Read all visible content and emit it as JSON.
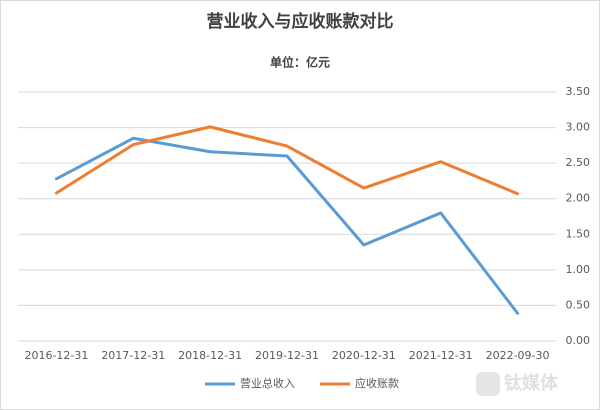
{
  "chart_data": {
    "type": "line",
    "title": "营业收入与应收账款对比",
    "subtitle": "单位：亿元",
    "categories": [
      "2016-12-31",
      "2017-12-31",
      "2018-12-31",
      "2019-12-31",
      "2020-12-31",
      "2021-12-31",
      "2022-09-30"
    ],
    "series": [
      {
        "name": "营业总收入",
        "color": "#5b9bd5",
        "values": [
          2.28,
          2.85,
          2.66,
          2.6,
          1.35,
          1.8,
          0.39
        ]
      },
      {
        "name": "应收账款",
        "color": "#ed7d31",
        "values": [
          2.08,
          2.76,
          3.01,
          2.74,
          2.15,
          2.52,
          2.07
        ]
      }
    ],
    "ylim": [
      0,
      3.5
    ],
    "yticks": [
      {
        "value": 0,
        "label": "0.00"
      },
      {
        "value": 0.5,
        "label": "0.50"
      },
      {
        "value": 1,
        "label": "1.00"
      },
      {
        "value": 1.5,
        "label": "1.50"
      },
      {
        "value": 2,
        "label": "2.00"
      },
      {
        "value": 2.5,
        "label": "2.50"
      },
      {
        "value": 3,
        "label": "3.00"
      },
      {
        "value": 3.5,
        "label": "3.50"
      }
    ],
    "y_axis_side": "right",
    "grid": true,
    "legend": "bottom",
    "watermark": "钛媒体"
  }
}
